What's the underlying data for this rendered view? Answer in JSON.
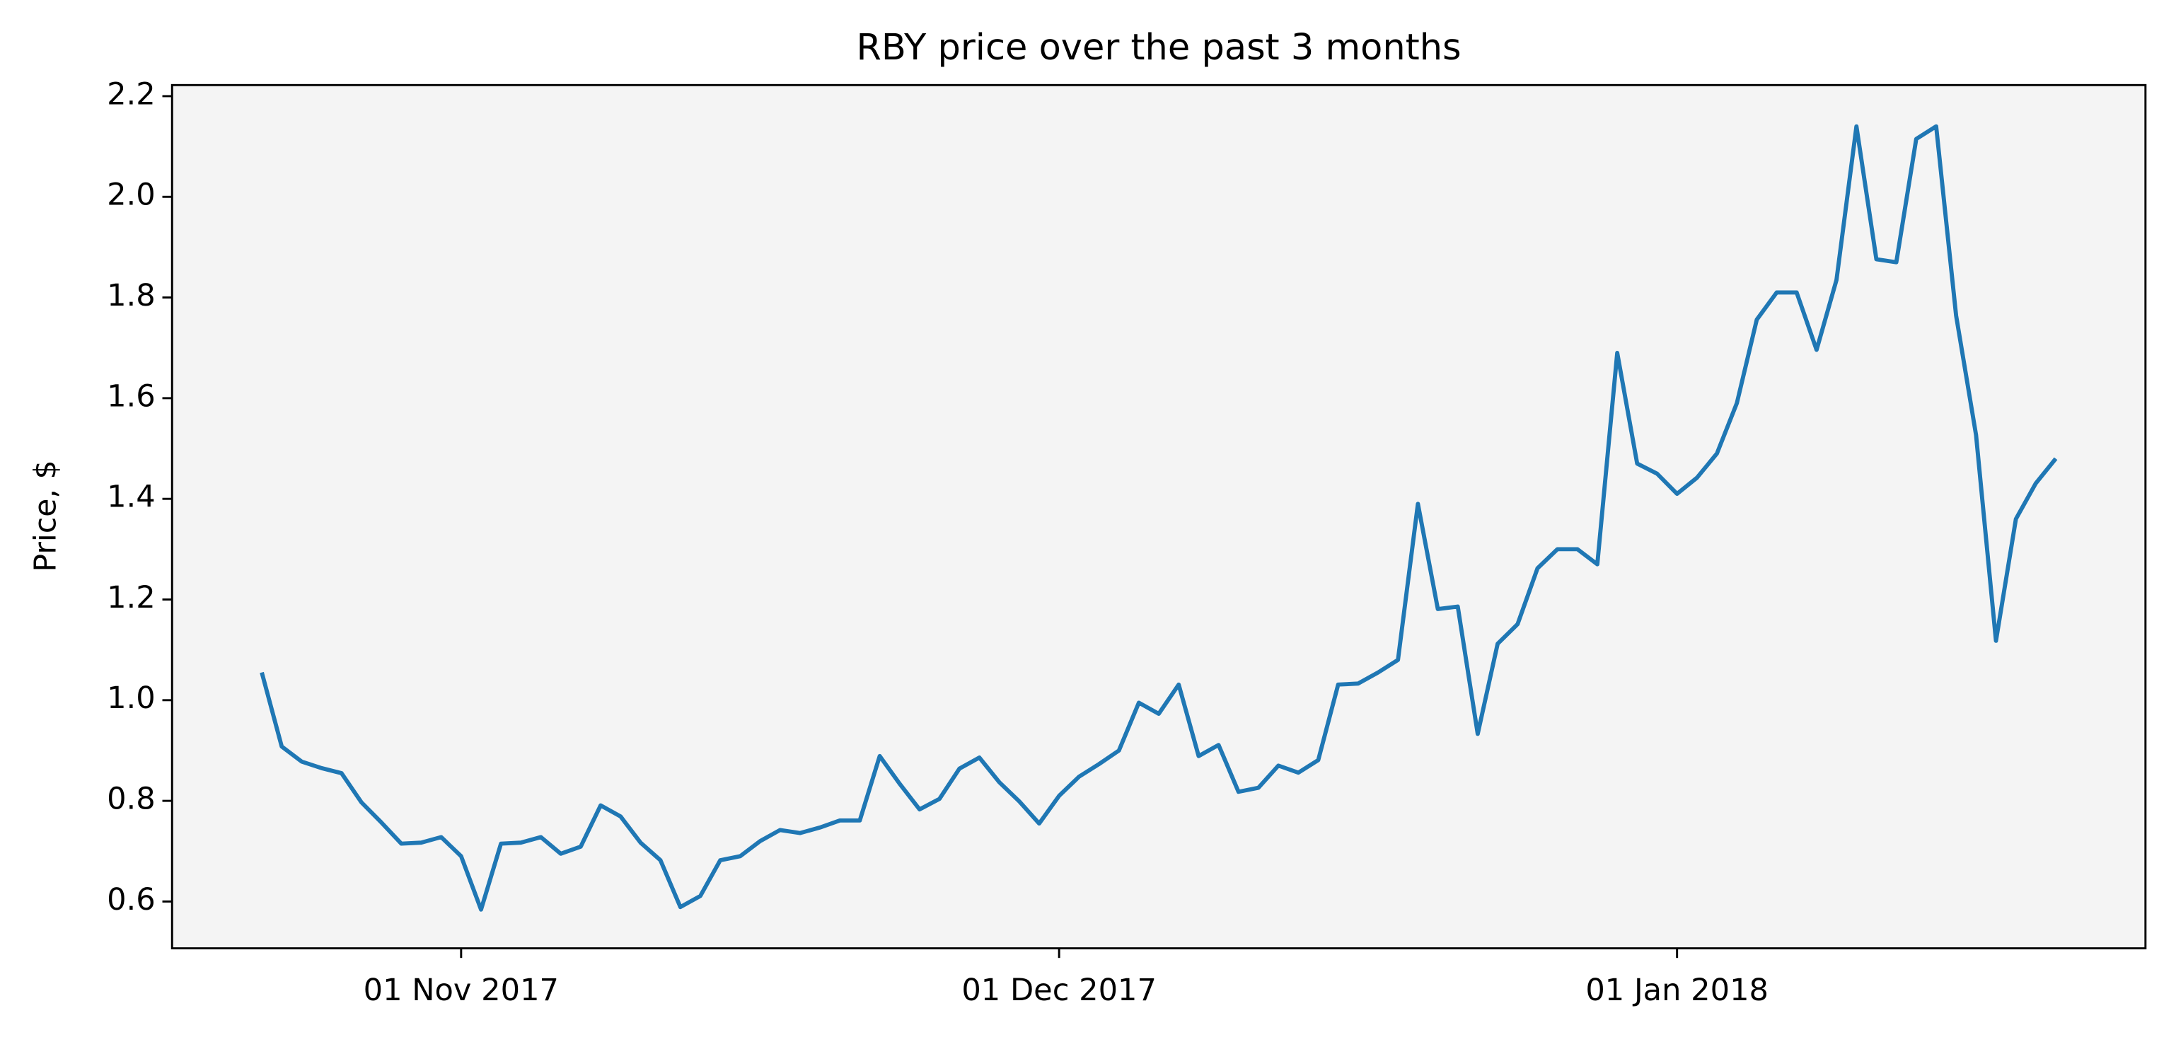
{
  "chart_data": {
    "type": "line",
    "title": "RBY price over the past 3 months",
    "ylabel": "Price, $",
    "x": [
      "2017-10-22",
      "2017-10-23",
      "2017-10-24",
      "2017-10-25",
      "2017-10-26",
      "2017-10-27",
      "2017-10-28",
      "2017-10-29",
      "2017-10-30",
      "2017-10-31",
      "2017-11-01",
      "2017-11-02",
      "2017-11-03",
      "2017-11-04",
      "2017-11-05",
      "2017-11-06",
      "2017-11-07",
      "2017-11-08",
      "2017-11-09",
      "2017-11-10",
      "2017-11-11",
      "2017-11-12",
      "2017-11-13",
      "2017-11-14",
      "2017-11-15",
      "2017-11-16",
      "2017-11-17",
      "2017-11-18",
      "2017-11-19",
      "2017-11-20",
      "2017-11-21",
      "2017-11-22",
      "2017-11-23",
      "2017-11-24",
      "2017-11-25",
      "2017-11-26",
      "2017-11-27",
      "2017-11-28",
      "2017-11-29",
      "2017-11-30",
      "2017-12-01",
      "2017-12-02",
      "2017-12-03",
      "2017-12-04",
      "2017-12-05",
      "2017-12-06",
      "2017-12-07",
      "2017-12-08",
      "2017-12-09",
      "2017-12-10",
      "2017-12-11",
      "2017-12-12",
      "2017-12-13",
      "2017-12-14",
      "2017-12-15",
      "2017-12-16",
      "2017-12-17",
      "2017-12-18",
      "2017-12-19",
      "2017-12-20",
      "2017-12-21",
      "2017-12-22",
      "2017-12-23",
      "2017-12-24",
      "2017-12-25",
      "2017-12-26",
      "2017-12-27",
      "2017-12-28",
      "2017-12-29",
      "2017-12-30",
      "2017-12-31",
      "2018-01-01",
      "2018-01-02",
      "2018-01-03",
      "2018-01-04",
      "2018-01-05",
      "2018-01-06",
      "2018-01-07",
      "2018-01-08",
      "2018-01-09",
      "2018-01-10",
      "2018-01-11",
      "2018-01-12",
      "2018-01-13",
      "2018-01-14",
      "2018-01-15",
      "2018-01-16",
      "2018-01-17",
      "2018-01-18",
      "2018-01-19",
      "2018-01-20"
    ],
    "values": [
      1.055,
      0.908,
      0.878,
      0.865,
      0.855,
      0.797,
      0.757,
      0.715,
      0.717,
      0.728,
      0.69,
      0.584,
      0.715,
      0.717,
      0.728,
      0.695,
      0.709,
      0.791,
      0.769,
      0.717,
      0.682,
      0.589,
      0.611,
      0.682,
      0.69,
      0.72,
      0.742,
      0.736,
      0.747,
      0.761,
      0.761,
      0.889,
      0.834,
      0.783,
      0.804,
      0.864,
      0.886,
      0.837,
      0.799,
      0.755,
      0.81,
      0.848,
      0.873,
      0.9,
      0.995,
      0.973,
      1.031,
      0.889,
      0.911,
      0.818,
      0.826,
      0.87,
      0.856,
      0.881,
      1.031,
      1.033,
      1.055,
      1.08,
      1.39,
      1.181,
      1.186,
      0.933,
      1.112,
      1.151,
      1.262,
      1.3,
      1.3,
      1.27,
      1.69,
      1.47,
      1.45,
      1.41,
      1.442,
      1.49,
      1.59,
      1.756,
      1.81,
      1.81,
      1.696,
      1.835,
      2.14,
      1.876,
      1.87,
      2.115,
      2.14,
      1.764,
      1.527,
      1.118,
      1.36,
      1.431,
      1.48
    ],
    "color": "#1f77b4",
    "xlim": [
      "2017-10-17T12:00:00Z",
      "2018-01-24T12:00:00Z"
    ],
    "xticks": [
      {
        "value": "2017-11-01",
        "label": "01 Nov 2017"
      },
      {
        "value": "2017-12-01",
        "label": "01 Dec 2017"
      },
      {
        "value": "2018-01-01",
        "label": "01 Jan 2018"
      }
    ],
    "ylim": [
      0.507,
      2.222
    ],
    "yticks": [
      0.6,
      0.8,
      {
        "value": 1.0,
        "label": "1.0"
      },
      1.2,
      1.4,
      1.6,
      1.8,
      {
        "value": 2.0,
        "label": "2.0"
      },
      2.2
    ],
    "grid": false,
    "background": "#f4f4f4"
  }
}
